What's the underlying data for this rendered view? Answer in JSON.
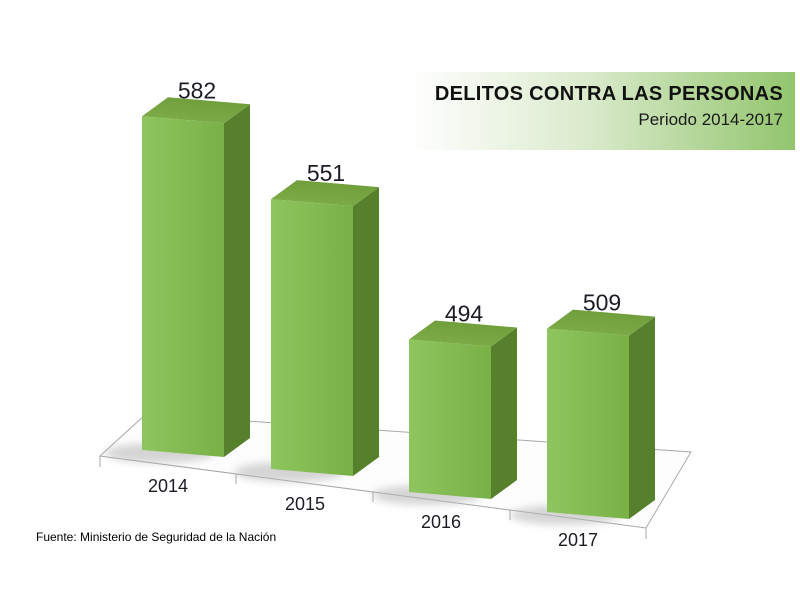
{
  "title_box": {
    "title": "DELITOS CONTRA LAS PERSONAS",
    "subtitle": "Periodo 2014-2017"
  },
  "source_note": "Fuente: Ministerio de Seguridad de la Nación",
  "colors": {
    "bar_front_light": "#8ec55e",
    "bar_front": "#79b147",
    "bar_top_light": "#7fae4a",
    "bar_top": "#6f9e3b",
    "bar_side": "#57802d",
    "title_box_green": "#92c56d",
    "floor_border": "#a8a8a8",
    "shadow": "#b4b4b4",
    "label_text": "#1c1c24"
  },
  "chart_data": {
    "type": "bar",
    "projection": "3d-column",
    "title": "DELITOS CONTRA LAS PERSONAS",
    "subtitle": "Periodo 2014-2017",
    "categories": [
      "2014",
      "2015",
      "2016",
      "2017"
    ],
    "values": [
      582,
      551,
      494,
      509
    ],
    "xlabel": "",
    "ylabel": "",
    "value_axis_visible": false,
    "gridlines": false,
    "legend": "none",
    "data_labels": "above-bars",
    "ylim_estimate": [
      420,
      600
    ]
  }
}
